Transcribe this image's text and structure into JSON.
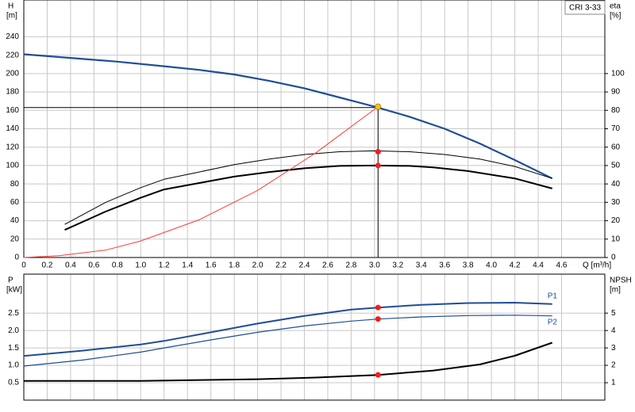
{
  "chart_data": [
    {
      "type": "line",
      "title": "CRI 3-33",
      "ylabel": "H",
      "yunit": "[m]",
      "y2label": "eta",
      "y2unit": "[%]",
      "xlabel": "Q [m³/h]",
      "xlim": [
        0,
        4.97
      ],
      "ylim": [
        0,
        280
      ],
      "y2lim": [
        0,
        140
      ],
      "grid": true,
      "xticks": [
        0,
        0.2,
        0.4,
        0.6,
        0.8,
        {
          "value": 1,
          "label": "1.0"
        },
        1.2,
        1.4,
        1.6,
        1.8,
        {
          "value": 2,
          "label": "2.0"
        },
        2.2,
        2.4,
        2.6,
        2.8,
        {
          "value": 3,
          "label": "3.0"
        },
        3.2,
        3.4,
        3.6,
        3.8,
        {
          "value": 4,
          "label": "4.0"
        },
        4.2,
        4.4,
        4.6
      ],
      "yticks": [
        0,
        20,
        40,
        60,
        80,
        100,
        120,
        140,
        160,
        180,
        200,
        220,
        240
      ],
      "y2ticks": [
        0,
        10,
        20,
        30,
        40,
        50,
        60,
        70,
        80,
        90,
        100
      ],
      "crosshair": {
        "x": 3.03,
        "y": 163
      },
      "series": [
        {
          "color": "#1f4e96",
          "width": 2.2,
          "axis": "y",
          "x": [
            0,
            0.4,
            0.8,
            1.2,
            1.5,
            1.8,
            2.1,
            2.4,
            2.7,
            3.0,
            3.3,
            3.6,
            3.9,
            4.2,
            4.52
          ],
          "values": [
            221,
            217,
            213,
            208,
            204,
            199,
            192,
            184,
            174,
            164,
            153,
            140,
            124,
            106,
            86
          ]
        },
        {
          "color": "#000000",
          "width": 1,
          "axis": "y2",
          "x": [
            0.35,
            0.7,
            1.0,
            1.2,
            1.5,
            1.8,
            2.1,
            2.4,
            2.7,
            3.0,
            3.3,
            3.6,
            3.9,
            4.2,
            4.52
          ],
          "values": [
            18,
            30,
            38,
            42.5,
            46.5,
            50.5,
            53.5,
            56,
            57.5,
            58,
            57.5,
            56,
            53.5,
            49.5,
            43
          ]
        },
        {
          "color": "#000000",
          "width": 2,
          "axis": "y2",
          "x": [
            0.35,
            0.7,
            1.0,
            1.2,
            1.5,
            1.8,
            2.1,
            2.4,
            2.7,
            3.0,
            3.3,
            3.5,
            3.8,
            4.2,
            4.52
          ],
          "values": [
            15,
            25,
            32.5,
            37,
            40.5,
            44,
            46.5,
            48.5,
            49.8,
            50,
            49.8,
            49,
            47,
            43,
            37.5
          ]
        },
        {
          "color": "#ff3b30",
          "width": 1,
          "axis": "y",
          "x": [
            0,
            0.3,
            0.7,
            1.0,
            1.5,
            2.0,
            2.5,
            3.03
          ],
          "values": [
            0,
            2,
            8,
            18,
            41,
            73,
            114,
            164
          ]
        }
      ],
      "points": [
        {
          "x": 3.03,
          "value": 164,
          "axis": "y",
          "color": "#f5c518"
        },
        {
          "x": 3.03,
          "value": 57.5,
          "axis": "y2",
          "color": "#ff1a1a"
        },
        {
          "x": 3.03,
          "value": 50,
          "axis": "y2",
          "color": "#ff1a1a"
        }
      ]
    },
    {
      "type": "line",
      "ylabel": "P",
      "yunit": "[kW]",
      "y2label": "NPSH",
      "y2unit": "[m]",
      "xlim": [
        0,
        4.97
      ],
      "ylim": [
        0,
        3.62
      ],
      "y2lim": [
        0,
        7.24
      ],
      "grid": true,
      "xticks": [
        0,
        0.2,
        0.4,
        0.6,
        0.8,
        1,
        1.2,
        1.4,
        1.6,
        1.8,
        2,
        2.2,
        2.4,
        2.6,
        2.8,
        3,
        3.2,
        3.4,
        3.6,
        3.8,
        4,
        4.2,
        4.4,
        4.6
      ],
      "yticks": [
        0.5,
        {
          "value": 1,
          "label": "1.0"
        },
        1.5,
        {
          "value": 2,
          "label": "2.0"
        },
        2.5
      ],
      "y2ticks": [
        1,
        2,
        3,
        4,
        5
      ],
      "series": [
        {
          "name": "P1",
          "label_pos": "above",
          "color": "#1f4e96",
          "width": 2,
          "axis": "y",
          "x": [
            0,
            0.5,
            1,
            1.2,
            1.6,
            2.0,
            2.4,
            2.8,
            3.03,
            3.4,
            3.8,
            4.2,
            4.52
          ],
          "values": [
            1.27,
            1.42,
            1.6,
            1.7,
            1.95,
            2.2,
            2.42,
            2.6,
            2.66,
            2.74,
            2.79,
            2.8,
            2.76
          ]
        },
        {
          "name": "P2",
          "label_pos": "below",
          "color": "#1f4e96",
          "width": 1.2,
          "axis": "y",
          "x": [
            0,
            0.5,
            1,
            1.2,
            1.6,
            2.0,
            2.4,
            2.8,
            3.03,
            3.4,
            3.8,
            4.2,
            4.52
          ],
          "values": [
            0.98,
            1.15,
            1.38,
            1.5,
            1.73,
            1.95,
            2.13,
            2.27,
            2.33,
            2.39,
            2.43,
            2.44,
            2.42
          ]
        },
        {
          "color": "#000000",
          "width": 2,
          "axis": "y2",
          "x": [
            0,
            1,
            2,
            2.5,
            3.03,
            3.5,
            3.9,
            4.2,
            4.52
          ],
          "values": [
            1.1,
            1.1,
            1.2,
            1.3,
            1.45,
            1.7,
            2.05,
            2.55,
            3.3
          ]
        }
      ],
      "points": [
        {
          "x": 3.03,
          "value": 2.66,
          "axis": "y",
          "color": "#ff1a1a"
        },
        {
          "x": 3.03,
          "value": 2.33,
          "axis": "y",
          "color": "#ff1a1a"
        },
        {
          "x": 3.03,
          "value": 1.45,
          "axis": "y2",
          "color": "#ff1a1a"
        }
      ]
    }
  ]
}
